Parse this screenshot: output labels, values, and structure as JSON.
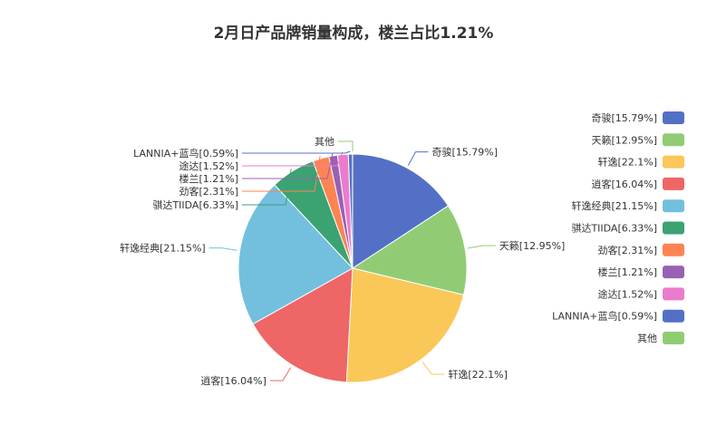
{
  "chart_data": {
    "type": "pie",
    "title": "2月日产品牌销量构成，楼兰占比1.21%",
    "legend_position": "right",
    "slices": [
      {
        "name": "奇骏",
        "label": "奇骏[15.79%]",
        "value": 15.79,
        "color": "#5470c6"
      },
      {
        "name": "天籁",
        "label": "天籁[12.95%]",
        "value": 12.95,
        "color": "#91cc75"
      },
      {
        "name": "轩逸",
        "label": "轩逸[22.1%]",
        "value": 22.1,
        "color": "#fac858"
      },
      {
        "name": "逍客",
        "label": "逍客[16.04%]",
        "value": 16.04,
        "color": "#ee6666"
      },
      {
        "name": "轩逸经典",
        "label": "轩逸经典[21.15%]",
        "value": 21.15,
        "color": "#73c0de"
      },
      {
        "name": "骐达TIIDA",
        "label": "骐达TIIDA[6.33%]",
        "value": 6.33,
        "color": "#3ba272"
      },
      {
        "name": "劲客",
        "label": "劲客[2.31%]",
        "value": 2.31,
        "color": "#fc8452"
      },
      {
        "name": "楼兰",
        "label": "楼兰[1.21%]",
        "value": 1.21,
        "color": "#9a60b4"
      },
      {
        "name": "途达",
        "label": "途达[1.52%]",
        "value": 1.52,
        "color": "#ea7ccc"
      },
      {
        "name": "LANNIA+蓝鸟",
        "label": "LANNIA+蓝鸟[0.59%]",
        "value": 0.59,
        "color": "#5470c6"
      },
      {
        "name": "其他",
        "label": "其他",
        "value": 0.01,
        "color": "#91cc75"
      }
    ]
  }
}
